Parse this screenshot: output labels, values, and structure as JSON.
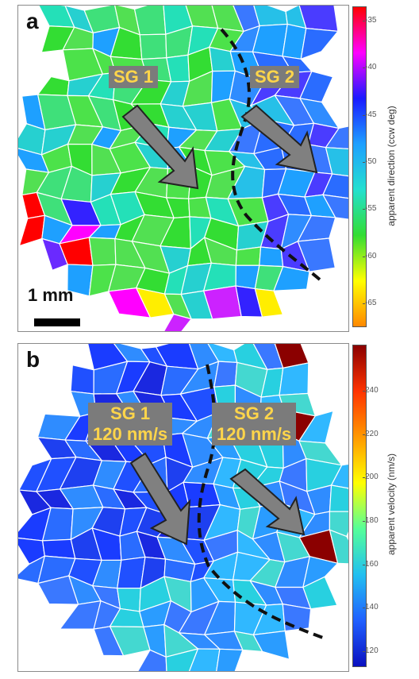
{
  "panels": [
    {
      "letter": "a",
      "labels": [
        "SG 1",
        "SG 2"
      ],
      "scalebar": "1 mm",
      "colorbar": {
        "title": "apparent direction (ccw deg)",
        "ticks": [
          "-35",
          "-40",
          "-45",
          "-50",
          "-55",
          "-60",
          "-65"
        ],
        "colors": [
          "#ff0000",
          "#ff00ff",
          "#1a1aff",
          "#1ea0ff",
          "#24e0d0",
          "#33dd33",
          "#ffff00",
          "#ff8800"
        ]
      }
    },
    {
      "letter": "b",
      "labels": [
        "SG 1\n120 nm/s",
        "SG 2\n120 nm/s"
      ],
      "colorbar": {
        "title": "apparent velocity (nm/s)",
        "ticks": [
          "240",
          "220",
          "200",
          "180",
          "160",
          "140",
          "120"
        ],
        "colors": [
          "#8b0000",
          "#ff3300",
          "#ff9900",
          "#ffff00",
          "#55ff99",
          "#22c0f0",
          "#2060ff",
          "#0a10c0"
        ]
      }
    }
  ]
}
